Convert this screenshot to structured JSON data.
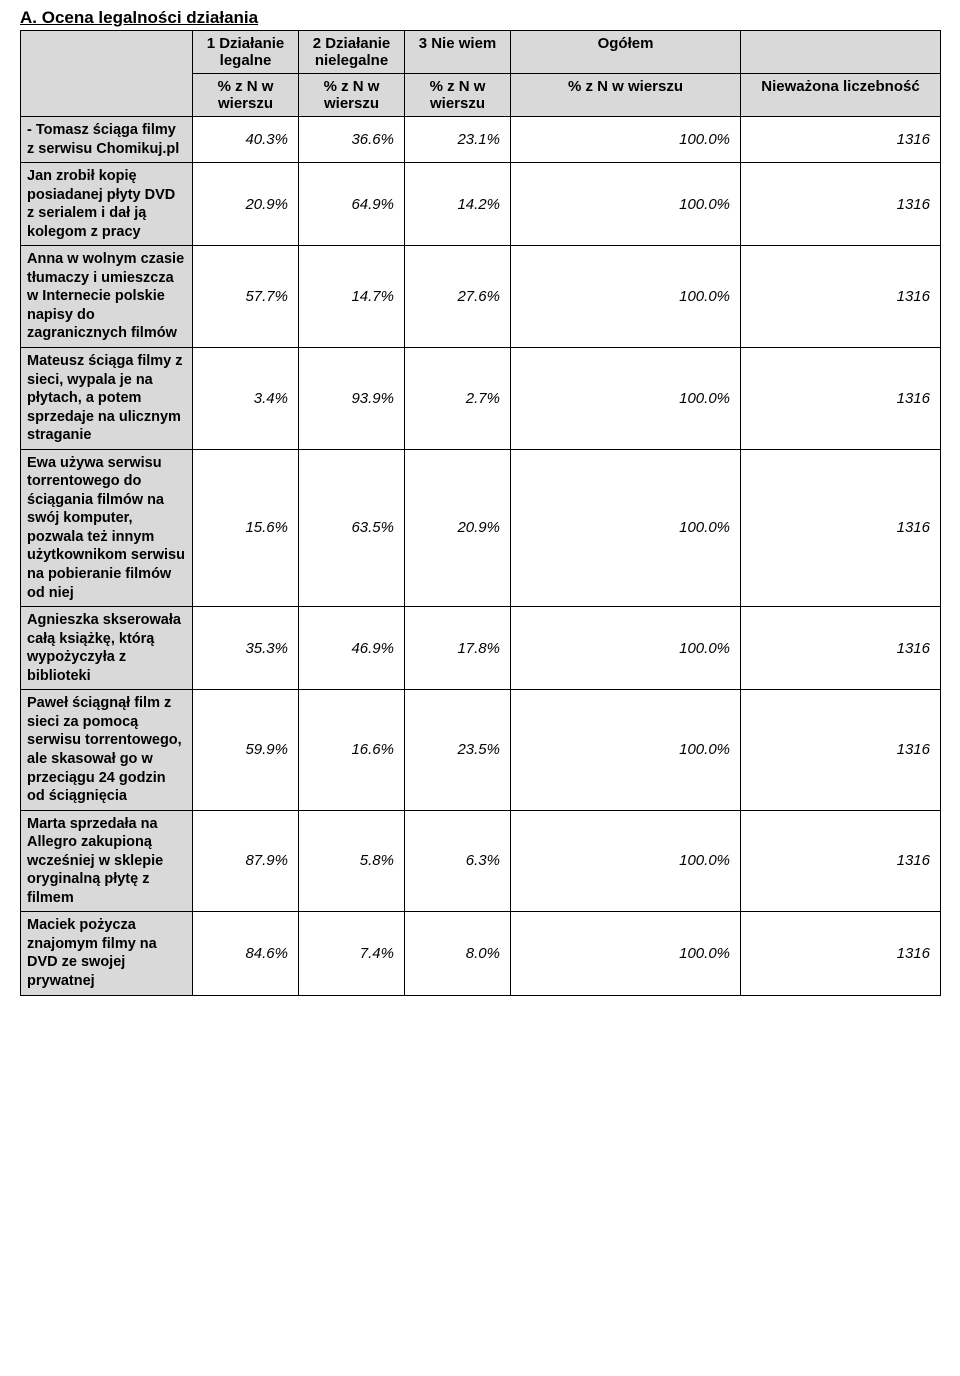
{
  "title": "A. Ocena legalności działania",
  "columns": {
    "row1": [
      "1 Działanie legalne",
      "2 Działanie nielegalne",
      "3 Nie wiem",
      "Ogółem",
      ""
    ],
    "row2": [
      "% z N w wierszu",
      "% z N w wierszu",
      "% z N w wierszu",
      "% z N w wierszu",
      "Nieważona liczebność"
    ]
  },
  "rows": [
    {
      "label": "- Tomasz ściąga filmy z serwisu Chomikuj.pl",
      "v": [
        "40.3%",
        "36.6%",
        "23.1%",
        "100.0%",
        "1316"
      ]
    },
    {
      "label": "Jan zrobił kopię posiadanej płyty DVD z serialem i dał ją kolegom z pracy",
      "v": [
        "20.9%",
        "64.9%",
        "14.2%",
        "100.0%",
        "1316"
      ]
    },
    {
      "label": "Anna w wolnym czasie tłumaczy i umieszcza w Internecie polskie napisy do zagranicznych filmów",
      "v": [
        "57.7%",
        "14.7%",
        "27.6%",
        "100.0%",
        "1316"
      ]
    },
    {
      "label": "Mateusz ściąga filmy z sieci, wypala je na płytach, a potem sprzedaje na ulicznym straganie",
      "v": [
        "3.4%",
        "93.9%",
        "2.7%",
        "100.0%",
        "1316"
      ]
    },
    {
      "label": "Ewa używa serwisu torrentowego do ściągania filmów na swój komputer, pozwala też innym użytkownikom serwisu na pobieranie filmów od niej",
      "v": [
        "15.6%",
        "63.5%",
        "20.9%",
        "100.0%",
        "1316"
      ]
    },
    {
      "label": "Agnieszka skserowała całą książkę, którą wypożyczyła z biblioteki",
      "v": [
        "35.3%",
        "46.9%",
        "17.8%",
        "100.0%",
        "1316"
      ]
    },
    {
      "label": "Paweł ściągnął film z sieci za pomocą serwisu torrentowego, ale skasował go w przeciągu 24 godzin od ściągnięcia",
      "v": [
        "59.9%",
        "16.6%",
        "23.5%",
        "100.0%",
        "1316"
      ]
    },
    {
      "label": "Marta sprzedała na Allegro zakupioną wcześniej w sklepie oryginalną płytę z filmem",
      "v": [
        "87.9%",
        "5.8%",
        "6.3%",
        "100.0%",
        "1316"
      ]
    },
    {
      "label": "Maciek pożycza znajomym filmy na DVD ze swojej prywatnej",
      "v": [
        "84.6%",
        "7.4%",
        "8.0%",
        "100.0%",
        "1316"
      ]
    }
  ],
  "style": {
    "header_bg": "#d9d9d9",
    "border_color": "#000000",
    "font_family": "Arial",
    "title_fontsize": 17,
    "body_fontsize": 15
  }
}
